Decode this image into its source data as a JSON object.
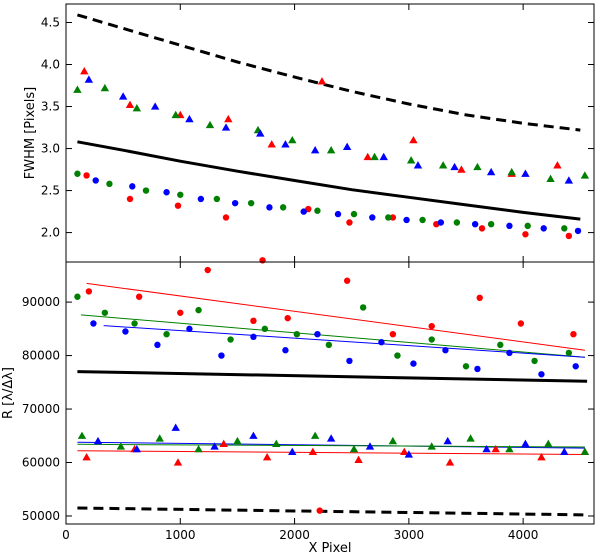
{
  "chart_data": [
    {
      "type": "scatter",
      "panel": "top",
      "title": "",
      "xlabel": "",
      "ylabel": "FWHM  [Pixels]",
      "xlim": [
        0,
        4620
      ],
      "ylim": [
        1.65,
        4.72
      ],
      "x_ticks": [
        0,
        1000,
        2000,
        3000,
        4000
      ],
      "y_ticks": [
        2.0,
        2.5,
        3.0,
        3.5,
        4.0,
        4.5
      ],
      "y_tick_labels": [
        "2.0",
        "2.5",
        "3.0",
        "3.5",
        "4.0",
        "4.5"
      ],
      "x_tick_labels_shown": false,
      "grid": false,
      "legend": "none",
      "colors": {
        "red": "#ff0000",
        "green": "#008000",
        "blue": "#0000ff",
        "black": "#000000"
      },
      "series": [
        {
          "name": "upper dashed curve",
          "style": "dashed",
          "color": "#000000",
          "x": [
            100,
            500,
            1000,
            1500,
            2000,
            2500,
            3000,
            3500,
            4000,
            4500
          ],
          "y": [
            4.59,
            4.43,
            4.23,
            4.03,
            3.85,
            3.68,
            3.53,
            3.4,
            3.3,
            3.22
          ]
        },
        {
          "name": "lower solid curve",
          "style": "solid",
          "color": "#000000",
          "x": [
            100,
            500,
            1000,
            1500,
            2000,
            2500,
            3000,
            3500,
            4000,
            4500
          ],
          "y": [
            3.08,
            2.98,
            2.85,
            2.73,
            2.62,
            2.51,
            2.42,
            2.33,
            2.24,
            2.16
          ]
        },
        {
          "name": "red triangles",
          "marker": "triangle",
          "color": "#ff0000",
          "x": [
            160,
            560,
            1000,
            1420,
            1800,
            2240,
            2640,
            3040,
            3460,
            3900,
            4300
          ],
          "y": [
            3.92,
            3.52,
            3.4,
            3.35,
            3.05,
            3.8,
            2.9,
            3.1,
            2.75,
            2.7,
            2.8
          ]
        },
        {
          "name": "green triangles",
          "marker": "triangle",
          "color": "#008000",
          "x": [
            100,
            340,
            620,
            960,
            1260,
            1680,
            1980,
            2320,
            2700,
            3020,
            3300,
            3600,
            3900,
            4240,
            4540
          ],
          "y": [
            3.7,
            3.72,
            3.48,
            3.4,
            3.28,
            3.22,
            3.1,
            2.98,
            2.9,
            2.86,
            2.8,
            2.78,
            2.72,
            2.64,
            2.68
          ]
        },
        {
          "name": "blue triangles",
          "marker": "triangle",
          "color": "#0000ff",
          "x": [
            200,
            500,
            780,
            1080,
            1400,
            1700,
            1920,
            2180,
            2460,
            2780,
            3080,
            3400,
            3720,
            4020,
            4400
          ],
          "y": [
            3.82,
            3.62,
            3.5,
            3.35,
            3.25,
            3.18,
            3.05,
            2.98,
            3.02,
            2.9,
            2.8,
            2.78,
            2.72,
            2.7,
            2.62
          ]
        },
        {
          "name": "red circles",
          "marker": "circle",
          "color": "#ff0000",
          "x": [
            180,
            560,
            980,
            1400,
            1720,
            2120,
            2480,
            2860,
            3240,
            3640,
            4020,
            4400
          ],
          "y": [
            2.68,
            2.4,
            2.32,
            2.18,
            1.67,
            2.28,
            2.12,
            2.18,
            2.1,
            2.05,
            1.98,
            1.96
          ]
        },
        {
          "name": "green circles",
          "marker": "circle",
          "color": "#008000",
          "x": [
            100,
            380,
            700,
            1000,
            1320,
            1620,
            1900,
            2200,
            2520,
            2820,
            3120,
            3420,
            3720,
            4040,
            4360
          ],
          "y": [
            2.7,
            2.58,
            2.5,
            2.45,
            2.4,
            2.35,
            2.3,
            2.26,
            2.22,
            2.18,
            2.15,
            2.12,
            2.1,
            2.08,
            2.05
          ]
        },
        {
          "name": "blue circles",
          "marker": "circle",
          "color": "#0000ff",
          "x": [
            260,
            580,
            880,
            1180,
            1480,
            1780,
            2080,
            2380,
            2680,
            2980,
            3280,
            3580,
            3880,
            4180,
            4480
          ],
          "y": [
            2.62,
            2.55,
            2.48,
            2.4,
            2.35,
            2.3,
            2.25,
            2.22,
            2.18,
            2.15,
            2.12,
            2.1,
            2.08,
            2.05,
            2.02
          ]
        }
      ]
    },
    {
      "type": "scatter",
      "panel": "bottom",
      "title": "",
      "xlabel": "X Pixel",
      "ylabel": "R  [λ/Δλ]",
      "xlim": [
        0,
        4620
      ],
      "ylim": [
        48500,
        97500
      ],
      "x_ticks": [
        0,
        1000,
        2000,
        3000,
        4000
      ],
      "x_tick_labels": [
        "0",
        "1000",
        "2000",
        "3000",
        "4000"
      ],
      "y_ticks": [
        50000,
        60000,
        70000,
        80000,
        90000
      ],
      "y_tick_labels": [
        "50000",
        "60000",
        "70000",
        "80000",
        "90000"
      ],
      "grid": false,
      "legend": "none",
      "colors": {
        "red": "#ff0000",
        "green": "#008000",
        "blue": "#0000ff",
        "black": "#000000"
      },
      "series": [
        {
          "name": "upper solid reference",
          "style": "solid-thick",
          "color": "#000000",
          "x": [
            100,
            4560
          ],
          "y": [
            77000,
            75200
          ]
        },
        {
          "name": "lower dashed reference",
          "style": "dashed",
          "color": "#000000",
          "x": [
            100,
            4560
          ],
          "y": [
            51500,
            50200
          ]
        },
        {
          "name": "red circle fit",
          "style": "solid-thin",
          "color": "#ff0000",
          "x": [
            180,
            4540
          ],
          "y": [
            93500,
            81000
          ]
        },
        {
          "name": "green circle fit",
          "style": "solid-thin",
          "color": "#008000",
          "x": [
            130,
            4540
          ],
          "y": [
            87600,
            79700
          ]
        },
        {
          "name": "blue circle fit",
          "style": "solid-thin",
          "color": "#0000ff",
          "x": [
            330,
            4540
          ],
          "y": [
            85600,
            79700
          ]
        },
        {
          "name": "blue triangle fit",
          "style": "solid-thin",
          "color": "#0000ff",
          "x": [
            100,
            4540
          ],
          "y": [
            63800,
            62700
          ]
        },
        {
          "name": "green triangle fit",
          "style": "solid-thin",
          "color": "#008000",
          "x": [
            100,
            4540
          ],
          "y": [
            63400,
            62900
          ]
        },
        {
          "name": "red triangle fit",
          "style": "solid-thin",
          "color": "#ff0000",
          "x": [
            100,
            4540
          ],
          "y": [
            62200,
            61500
          ]
        },
        {
          "name": "red circles",
          "marker": "circle",
          "color": "#ff0000",
          "x": [
            200,
            640,
            1000,
            1240,
            1640,
            1940,
            2220,
            2460,
            2860,
            3200,
            3620,
            3980,
            4440
          ],
          "y": [
            92000,
            91000,
            88000,
            96000,
            86500,
            87000,
            51000,
            94000,
            84000,
            85500,
            90800,
            86000,
            84000
          ]
        },
        {
          "name": "green circles",
          "marker": "circle",
          "color": "#008000",
          "x": [
            100,
            340,
            600,
            880,
            1160,
            1440,
            1740,
            2020,
            2300,
            2600,
            2900,
            3200,
            3500,
            3800,
            4100,
            4400
          ],
          "y": [
            91000,
            88000,
            86000,
            84000,
            88500,
            83000,
            85000,
            84000,
            82000,
            89000,
            80000,
            83000,
            78000,
            82000,
            79000,
            80500
          ]
        },
        {
          "name": "blue circles",
          "marker": "circle",
          "color": "#0000ff",
          "x": [
            240,
            520,
            800,
            1080,
            1360,
            1640,
            1920,
            2200,
            2480,
            2760,
            3040,
            3320,
            3600,
            3880,
            4160,
            4460
          ],
          "y": [
            86000,
            84500,
            82000,
            85000,
            80000,
            83500,
            81000,
            84000,
            79000,
            82500,
            78500,
            81000,
            77500,
            80500,
            76500,
            78000
          ]
        },
        {
          "name": "red triangles",
          "marker": "triangle",
          "color": "#ff0000",
          "x": [
            180,
            600,
            980,
            1380,
            1760,
            2160,
            2560,
            2960,
            3360,
            3760,
            4160,
            4540
          ],
          "y": [
            61000,
            62500,
            60000,
            63500,
            61000,
            62000,
            60500,
            62000,
            60000,
            62500,
            61000,
            62000
          ]
        },
        {
          "name": "green triangles",
          "marker": "triangle",
          "color": "#008000",
          "x": [
            140,
            480,
            820,
            1160,
            1500,
            1840,
            2180,
            2520,
            2860,
            3200,
            3540,
            3880,
            4220,
            4540
          ],
          "y": [
            65000,
            63000,
            64500,
            62500,
            64000,
            63500,
            65000,
            62500,
            64000,
            63000,
            64500,
            62500,
            63500,
            62000
          ]
        },
        {
          "name": "blue triangles",
          "marker": "triangle",
          "color": "#0000ff",
          "x": [
            280,
            620,
            960,
            1300,
            1640,
            1980,
            2320,
            2660,
            3000,
            3340,
            3680,
            4020,
            4360
          ],
          "y": [
            64000,
            62500,
            66500,
            63000,
            65000,
            62000,
            64500,
            63000,
            61500,
            64000,
            62500,
            63500,
            62000
          ]
        }
      ]
    }
  ]
}
